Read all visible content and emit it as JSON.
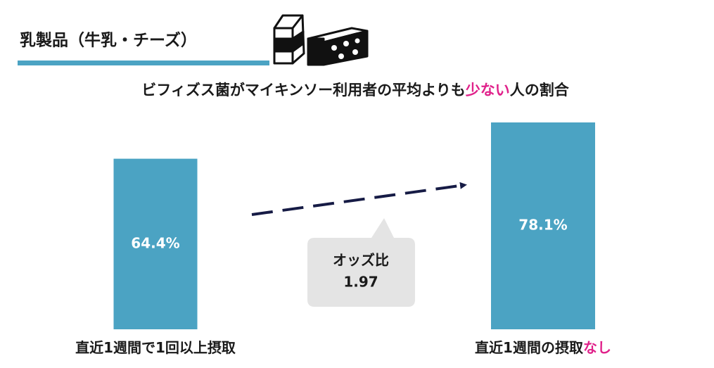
{
  "chart_data": {
    "type": "bar",
    "title": "乳製品（牛乳・チーズ）",
    "subtitle": [
      {
        "text": "ビフィズス菌がマイキンソー利用者の平均よりも"
      },
      {
        "text": "少ない",
        "emphasis": true
      },
      {
        "text": "人の割合"
      }
    ],
    "categories": [
      [
        {
          "text": "直近1週間で1回以上摂取"
        }
      ],
      [
        {
          "text": "直近1週間の摂取"
        },
        {
          "text": "なし",
          "emphasis": true
        }
      ]
    ],
    "values": [
      64.4,
      78.1
    ],
    "value_labels": [
      "64.4%",
      "78.1%"
    ],
    "color": "#4ba3c3",
    "emphasis_color": "#e0218a",
    "annotation": {
      "label": "オッズ比",
      "value": 1.97
    }
  }
}
